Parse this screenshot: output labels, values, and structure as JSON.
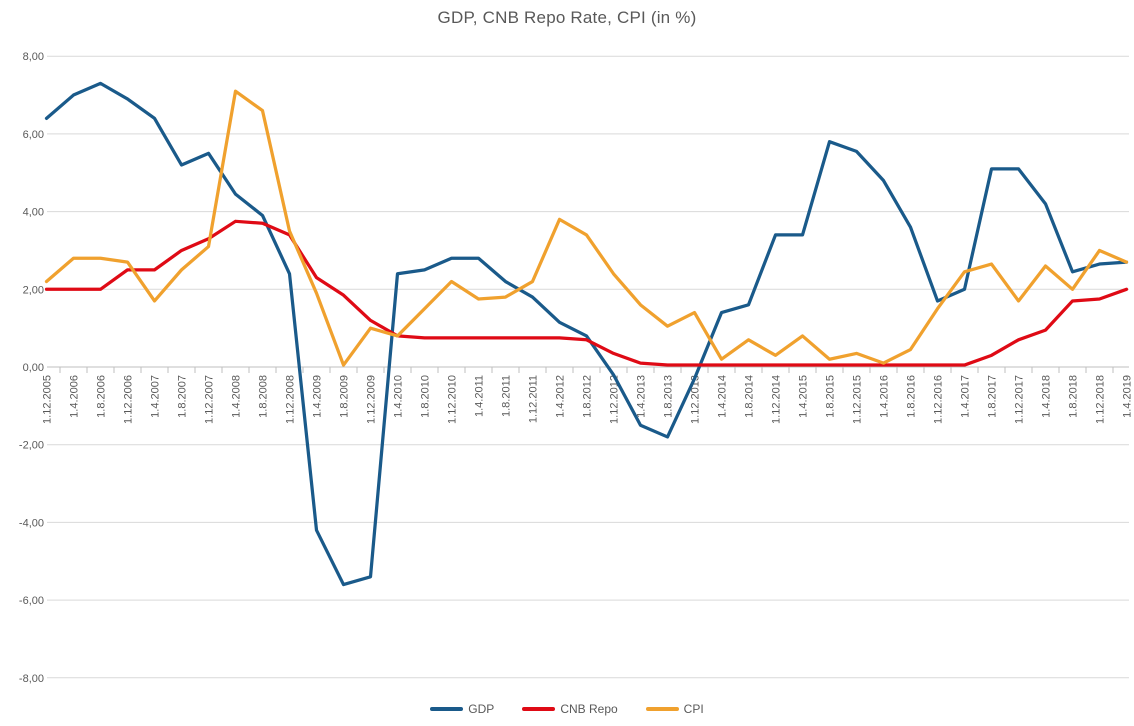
{
  "title": "GDP, CNB Repo Rate, CPI (in %)",
  "colors": {
    "gdp": "#1A5A8A",
    "cnb_repo": "#DF0A15",
    "cpi": "#F0A12E",
    "gridline": "#D9D9D9",
    "axis_line": "#BFBFBF",
    "text": "#595959"
  },
  "chart_data": {
    "type": "line",
    "title": "GDP, CNB Repo Rate, CPI (in %)",
    "xlabel": "",
    "ylabel": "",
    "ylim": [
      -8,
      8
    ],
    "ytick_step": 2,
    "grid": true,
    "legend_position": "bottom",
    "ytick_values": [
      8,
      6,
      4,
      2,
      0,
      -2,
      -4,
      -6,
      -8
    ],
    "ytick_labels": [
      "8,00",
      "6,00",
      "4,00",
      "2,00",
      "0,00",
      "-2,00",
      "-4,00",
      "-6,00",
      "-8,00"
    ],
    "categories": [
      "1.12.2005",
      "1.4.2006",
      "1.8.2006",
      "1.12.2006",
      "1.4.2007",
      "1.8.2007",
      "1.12.2007",
      "1.4.2008",
      "1.8.2008",
      "1.12.2008",
      "1.4.2009",
      "1.8.2009",
      "1.12.2009",
      "1.4.2010",
      "1.8.2010",
      "1.12.2010",
      "1.4.2011",
      "1.8.2011",
      "1.12.2011",
      "1.4.2012",
      "1.8.2012",
      "1.12.2012",
      "1.4.2013",
      "1.8.2013",
      "1.12.2013",
      "1.4.2014",
      "1.8.2014",
      "1.12.2014",
      "1.4.2015",
      "1.8.2015",
      "1.12.2015",
      "1.4.2016",
      "1.8.2016",
      "1.12.2016",
      "1.4.2017",
      "1.8.2017",
      "1.12.2017",
      "1.4.2018",
      "1.8.2018",
      "1.12.2018",
      "1.4.2019"
    ],
    "series": [
      {
        "name": "GDP",
        "color": "#1A5A8A",
        "values": [
          6.4,
          7.0,
          7.3,
          6.9,
          6.4,
          5.2,
          5.5,
          4.45,
          3.9,
          2.4,
          -4.2,
          -5.6,
          -5.4,
          2.4,
          2.5,
          2.8,
          2.8,
          2.2,
          1.8,
          1.15,
          0.8,
          -0.2,
          -1.5,
          -1.8,
          -0.3,
          1.4,
          1.6,
          3.4,
          3.4,
          5.8,
          5.55,
          4.8,
          3.6,
          1.7,
          2.0,
          5.1,
          5.1,
          4.2,
          2.45,
          2.65,
          2.7
        ]
      },
      {
        "name": "CNB Repo",
        "color": "#DF0A15",
        "values": [
          2.0,
          2.0,
          2.0,
          2.5,
          2.5,
          3.0,
          3.3,
          3.75,
          3.7,
          3.4,
          2.3,
          1.85,
          1.2,
          0.8,
          0.75,
          0.75,
          0.75,
          0.75,
          0.75,
          0.75,
          0.7,
          0.35,
          0.1,
          0.05,
          0.05,
          0.05,
          0.05,
          0.05,
          0.05,
          0.05,
          0.05,
          0.05,
          0.05,
          0.05,
          0.05,
          0.3,
          0.7,
          0.95,
          1.7,
          1.75,
          2.0
        ]
      },
      {
        "name": "CPI",
        "color": "#F0A12E",
        "values": [
          2.2,
          2.8,
          2.8,
          2.7,
          1.7,
          2.5,
          3.1,
          7.1,
          6.6,
          3.5,
          1.9,
          0.05,
          1.0,
          0.8,
          1.5,
          2.2,
          1.75,
          1.8,
          2.2,
          3.8,
          3.4,
          2.4,
          1.6,
          1.05,
          1.4,
          0.2,
          0.7,
          0.3,
          0.8,
          0.2,
          0.35,
          0.1,
          0.45,
          1.5,
          2.45,
          2.65,
          1.7,
          2.6,
          2.0,
          3.0,
          2.7
        ]
      }
    ]
  },
  "legend": {
    "items": [
      {
        "label": "GDP",
        "color": "#1A5A8A"
      },
      {
        "label": "CNB Repo",
        "color": "#DF0A15"
      },
      {
        "label": "CPI",
        "color": "#F0A12E"
      }
    ]
  }
}
